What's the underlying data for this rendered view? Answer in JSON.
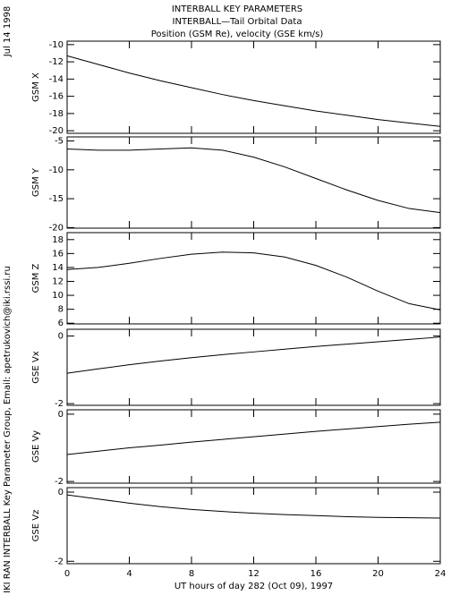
{
  "header": {
    "titles": [
      "INTERBALL KEY PARAMETERS",
      "INTERBALL—Tail Orbital Data",
      "Position (GSM Re), velocity (GSE km/s)"
    ],
    "date": "Jul 14 1998",
    "credit": "IKI RAN INTERBALL Key Parameter Group, Email: apetrukovich@iki.rssi.ru"
  },
  "chart_data": [
    {
      "type": "line",
      "ylabel": "GSM X",
      "color": "#000000",
      "x": [
        0,
        2,
        4,
        6,
        8,
        10,
        12,
        14,
        16,
        18,
        20,
        22,
        24
      ],
      "values": [
        -11.3,
        -12.3,
        -13.3,
        -14.2,
        -15.0,
        -15.8,
        -16.5,
        -17.1,
        -17.7,
        -18.2,
        -18.7,
        -19.1,
        -19.5
      ],
      "xlim": [
        0,
        24
      ],
      "ylim": [
        -20.3,
        -9.6
      ],
      "yticks": [
        -20,
        -18,
        -16,
        -14,
        -12,
        -10
      ]
    },
    {
      "type": "line",
      "ylabel": "GSM Y",
      "color": "#000000",
      "x": [
        0,
        2,
        4,
        6,
        8,
        10,
        12,
        14,
        16,
        18,
        20,
        22,
        24
      ],
      "values": [
        -6.4,
        -6.6,
        -6.6,
        -6.4,
        -6.2,
        -6.6,
        -7.8,
        -9.5,
        -11.5,
        -13.5,
        -15.3,
        -16.7,
        -17.4
      ],
      "xlim": [
        0,
        24
      ],
      "ylim": [
        -20.1,
        -4.3
      ],
      "yticks": [
        -20,
        -15,
        -10,
        -5
      ]
    },
    {
      "type": "line",
      "ylabel": "GSM Z",
      "color": "#000000",
      "x": [
        0,
        2,
        4,
        6,
        8,
        10,
        12,
        14,
        16,
        18,
        20,
        22,
        24
      ],
      "values": [
        13.7,
        14.0,
        14.6,
        15.3,
        15.9,
        16.2,
        16.1,
        15.5,
        14.3,
        12.6,
        10.6,
        8.8,
        7.9
      ],
      "xlim": [
        0,
        24
      ],
      "ylim": [
        5.9,
        19
      ],
      "yticks": [
        6,
        8,
        10,
        12,
        14,
        16,
        18
      ]
    },
    {
      "type": "line",
      "ylabel": "GSE Vx",
      "color": "#000000",
      "x": [
        0,
        2,
        4,
        6,
        8,
        10,
        12,
        14,
        16,
        18,
        20,
        22,
        24
      ],
      "values": [
        -1.1,
        -0.97,
        -0.85,
        -0.74,
        -0.64,
        -0.55,
        -0.47,
        -0.39,
        -0.31,
        -0.24,
        -0.17,
        -0.1,
        -0.03
      ],
      "xlim": [
        0,
        24
      ],
      "ylim": [
        -2.05,
        0.2
      ],
      "yticks": [
        -2,
        0
      ]
    },
    {
      "type": "line",
      "ylabel": "GSE Vy",
      "color": "#000000",
      "x": [
        0,
        2,
        4,
        6,
        8,
        10,
        12,
        14,
        16,
        18,
        20,
        22,
        24
      ],
      "values": [
        -1.2,
        -1.1,
        -1.0,
        -0.92,
        -0.83,
        -0.75,
        -0.67,
        -0.59,
        -0.51,
        -0.44,
        -0.37,
        -0.3,
        -0.24
      ],
      "xlim": [
        0,
        24
      ],
      "ylim": [
        -2.05,
        0.13
      ],
      "yticks": [
        -2,
        0
      ]
    },
    {
      "type": "line",
      "ylabel": "GSE Vz",
      "xlabel": "UT hours of day 282 (Oct 09), 1997",
      "color": "#000000",
      "x": [
        0,
        2,
        4,
        6,
        8,
        10,
        12,
        14,
        16,
        18,
        20,
        22,
        24
      ],
      "values": [
        -0.08,
        -0.2,
        -0.32,
        -0.42,
        -0.5,
        -0.56,
        -0.61,
        -0.65,
        -0.68,
        -0.71,
        -0.73,
        -0.74,
        -0.75
      ],
      "xlim": [
        0,
        24
      ],
      "ylim": [
        -2.07,
        0.13
      ],
      "yticks": [
        -2,
        0
      ],
      "xticks": [
        0,
        4,
        8,
        12,
        16,
        20,
        24
      ]
    }
  ]
}
